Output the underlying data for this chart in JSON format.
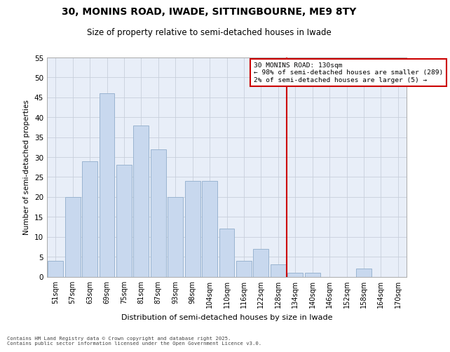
{
  "title": "30, MONINS ROAD, IWADE, SITTINGBOURNE, ME9 8TY",
  "subtitle": "Size of property relative to semi-detached houses in Iwade",
  "xlabel": "Distribution of semi-detached houses by size in Iwade",
  "ylabel": "Number of semi-detached properties",
  "categories": [
    "51sqm",
    "57sqm",
    "63sqm",
    "69sqm",
    "75sqm",
    "81sqm",
    "87sqm",
    "93sqm",
    "98sqm",
    "104sqm",
    "110sqm",
    "116sqm",
    "122sqm",
    "128sqm",
    "134sqm",
    "140sqm",
    "146sqm",
    "152sqm",
    "158sqm",
    "164sqm",
    "170sqm"
  ],
  "values": [
    4,
    20,
    29,
    46,
    28,
    38,
    32,
    20,
    24,
    24,
    12,
    4,
    7,
    3,
    1,
    1,
    0,
    0,
    2,
    0,
    0
  ],
  "bar_color": "#c8d8ee",
  "bar_edge_color": "#9ab4d0",
  "grid_color": "#c8d0dc",
  "background_color": "#e8eef8",
  "vline_x": 13.5,
  "vline_color": "#cc0000",
  "annotation_text": "30 MONINS ROAD: 130sqm\n← 98% of semi-detached houses are smaller (289)\n2% of semi-detached houses are larger (5) →",
  "annotation_box_color": "#cc0000",
  "ylim": [
    0,
    55
  ],
  "yticks": [
    0,
    5,
    10,
    15,
    20,
    25,
    30,
    35,
    40,
    45,
    50,
    55
  ],
  "footer_line1": "Contains HM Land Registry data © Crown copyright and database right 2025.",
  "footer_line2": "Contains public sector information licensed under the Open Government Licence v3.0.",
  "title_fontsize": 10,
  "subtitle_fontsize": 8.5
}
